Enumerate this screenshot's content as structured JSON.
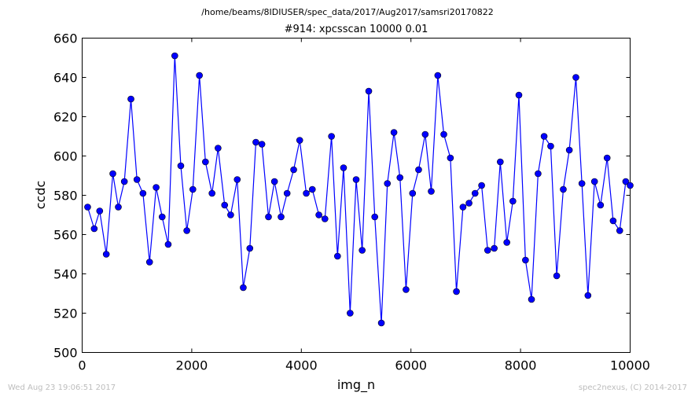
{
  "page": {
    "suptitle": "/home/beams/8IDIUSER/spec_data/2017/Aug2017/samsri20170822",
    "footer_left": "Wed Aug 23 19:06:51 2017",
    "footer_right": "spec2nexus, (C) 2014-2017"
  },
  "chart_data": {
    "type": "line",
    "title": "#914: xpcsscan 10000 0.01",
    "xlabel": "img_n",
    "ylabel": "ccdc",
    "xlim": [
      0,
      10000
    ],
    "ylim": [
      500,
      660
    ],
    "xticks": [
      0,
      2000,
      4000,
      6000,
      8000,
      10000
    ],
    "yticks": [
      500,
      520,
      540,
      560,
      580,
      600,
      620,
      640,
      660
    ],
    "marker": "circle",
    "line_color": "#0000ff",
    "marker_color": "#0000ff",
    "grid": false,
    "series": [
      {
        "x": [
          100,
          220,
          320,
          440,
          560,
          660,
          770,
          890,
          1000,
          1110,
          1230,
          1350,
          1460,
          1570,
          1690,
          1800,
          1910,
          2020,
          2140,
          2250,
          2370,
          2480,
          2600,
          2710,
          2830,
          2940,
          3060,
          3170,
          3280,
          3400,
          3510,
          3630,
          3740,
          3860,
          3970,
          4090,
          4200,
          4320,
          4430,
          4550,
          4660,
          4770,
          4890,
          5000,
          5110,
          5230,
          5340,
          5460,
          5570,
          5690,
          5800,
          5910,
          6030,
          6140,
          6260,
          6370,
          6490,
          6600,
          6720,
          6830,
          6950,
          7060,
          7170,
          7290,
          7400,
          7520,
          7630,
          7750,
          7860,
          7970,
          8090,
          8200,
          8320,
          8430,
          8550,
          8660,
          8780,
          8890,
          9010,
          9120,
          9230,
          9350,
          9460,
          9580,
          9690,
          9810,
          9920,
          10000
        ],
        "y": [
          574,
          563,
          572,
          550,
          591,
          574,
          587,
          629,
          588,
          581,
          546,
          584,
          569,
          555,
          651,
          595,
          562,
          583,
          641,
          597,
          581,
          604,
          575,
          570,
          588,
          533,
          553,
          607,
          606,
          569,
          587,
          569,
          581,
          593,
          608,
          581,
          583,
          570,
          568,
          610,
          549,
          594,
          520,
          588,
          552,
          633,
          569,
          515,
          586,
          612,
          589,
          532,
          581,
          593,
          611,
          582,
          641,
          611,
          599,
          531,
          574,
          576,
          581,
          585,
          552,
          553,
          597,
          556,
          577,
          631,
          547,
          527,
          591,
          610,
          605,
          539,
          583,
          603,
          640,
          586,
          529,
          587,
          575,
          599,
          567,
          562,
          587,
          585
        ]
      }
    ]
  }
}
